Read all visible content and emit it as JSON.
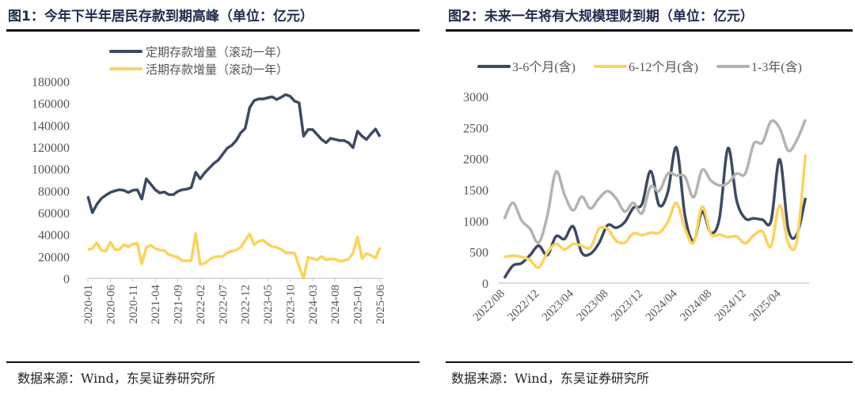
{
  "left": {
    "title": "图1：今年下半年居民存款到期高峰（单位：亿元）",
    "footer": "数据来源：Wind，东吴证券研究所",
    "chart_data": {
      "type": "line",
      "start": "2020-01",
      "end": "2025-06",
      "frequency": "monthly",
      "xticks": [
        "2020-01",
        "2020-06",
        "2020-11",
        "2021-04",
        "2021-09",
        "2022-02",
        "2022-07",
        "2022-12",
        "2023-05",
        "2023-10",
        "2024-03",
        "2024-08",
        "2025-01",
        "2025-06"
      ],
      "yticks": [
        "0",
        "20000",
        "40000",
        "60000",
        "80000",
        "100000",
        "120000",
        "140000",
        "160000",
        "180000"
      ],
      "ylim": [
        0,
        180000
      ],
      "legend_position": "top",
      "grid": false,
      "series": [
        {
          "name": "定期存款增量（滚动一年）",
          "color": "#3c4a62",
          "values": [
            75000,
            60000,
            67700,
            73000,
            76000,
            78500,
            80000,
            81000,
            80500,
            78500,
            80500,
            81000,
            72500,
            91000,
            86000,
            81000,
            78000,
            79000,
            76500,
            76500,
            79500,
            81000,
            81500,
            83000,
            97000,
            91000,
            96500,
            100800,
            105000,
            108000,
            113500,
            119000,
            121500,
            126000,
            133000,
            137000,
            156000,
            162500,
            164000,
            164000,
            165000,
            166000,
            163500,
            165500,
            168000,
            166500,
            162000,
            160500,
            130000,
            136000,
            136000,
            131500,
            127000,
            124000,
            128000,
            127000,
            126000,
            126000,
            124000,
            119500,
            134500,
            130000,
            127000,
            132000,
            136500,
            129500
          ]
        },
        {
          "name": "活期存款增量（滚动一年）",
          "color": "#fbd35c",
          "values": [
            26300,
            27300,
            32600,
            25400,
            24900,
            33100,
            26300,
            26600,
            30700,
            29000,
            31400,
            31900,
            13300,
            28300,
            30200,
            27300,
            25900,
            25400,
            21700,
            20500,
            19300,
            16200,
            16200,
            16200,
            41000,
            12800,
            13800,
            16900,
            19300,
            20000,
            20000,
            23400,
            24900,
            25900,
            28300,
            34500,
            40800,
            30700,
            33800,
            35000,
            31400,
            29000,
            28300,
            26600,
            23400,
            23400,
            23000,
            10900,
            0,
            19300,
            18100,
            16900,
            20000,
            16900,
            17600,
            17600,
            15700,
            16200,
            17600,
            23000,
            37900,
            18100,
            22500,
            21000,
            18600,
            28300
          ]
        }
      ]
    }
  },
  "right": {
    "title": "图2：未来一年将有大规模理财到期（单位：亿元）",
    "footer": "数据来源：Wind，东吴证券研究所",
    "chart_data": {
      "type": "line",
      "start": "2022/08",
      "frequency": "monthly",
      "xticks": [
        "2022/08",
        "2022/12",
        "2023/04",
        "2023/08",
        "2023/12",
        "2024/04",
        "2024/08",
        "2024/12",
        "2025/04"
      ],
      "yticks": [
        "0",
        "500",
        "1000",
        "1500",
        "2000",
        "2500",
        "3000"
      ],
      "ylim": [
        0,
        3000
      ],
      "legend_position": "top",
      "grid": false,
      "series": [
        {
          "name": "3-6个月(含)",
          "color": "#3c4a62",
          "values": [
            80,
            280,
            320,
            450,
            600,
            450,
            750,
            710,
            910,
            490,
            470,
            640,
            930,
            890,
            980,
            1210,
            1270,
            1800,
            1250,
            1460,
            2180,
            1080,
            680,
            1150,
            810,
            1040,
            2170,
            1330,
            1040,
            1040,
            1020,
            1000,
            1990,
            870,
            780,
            1370
          ]
        },
        {
          "name": "6-12个月(含)",
          "color": "#fbd35c",
          "values": [
            420,
            440,
            420,
            370,
            250,
            490,
            630,
            540,
            630,
            600,
            570,
            870,
            870,
            680,
            650,
            800,
            770,
            810,
            810,
            980,
            1290,
            870,
            650,
            1230,
            790,
            780,
            740,
            750,
            640,
            770,
            830,
            590,
            1250,
            640,
            680,
            2070
          ]
        },
        {
          "name": "1-3年(含)",
          "color": "#b3b3b3",
          "values": [
            1030,
            1290,
            1010,
            870,
            650,
            1080,
            1790,
            1420,
            1170,
            1390,
            1200,
            1360,
            1480,
            1360,
            1150,
            1290,
            1120,
            1550,
            1480,
            1760,
            1730,
            1710,
            1380,
            1820,
            1650,
            1570,
            1610,
            1760,
            1760,
            2240,
            2260,
            2600,
            2490,
            2130,
            2300,
            2630
          ]
        }
      ]
    }
  }
}
